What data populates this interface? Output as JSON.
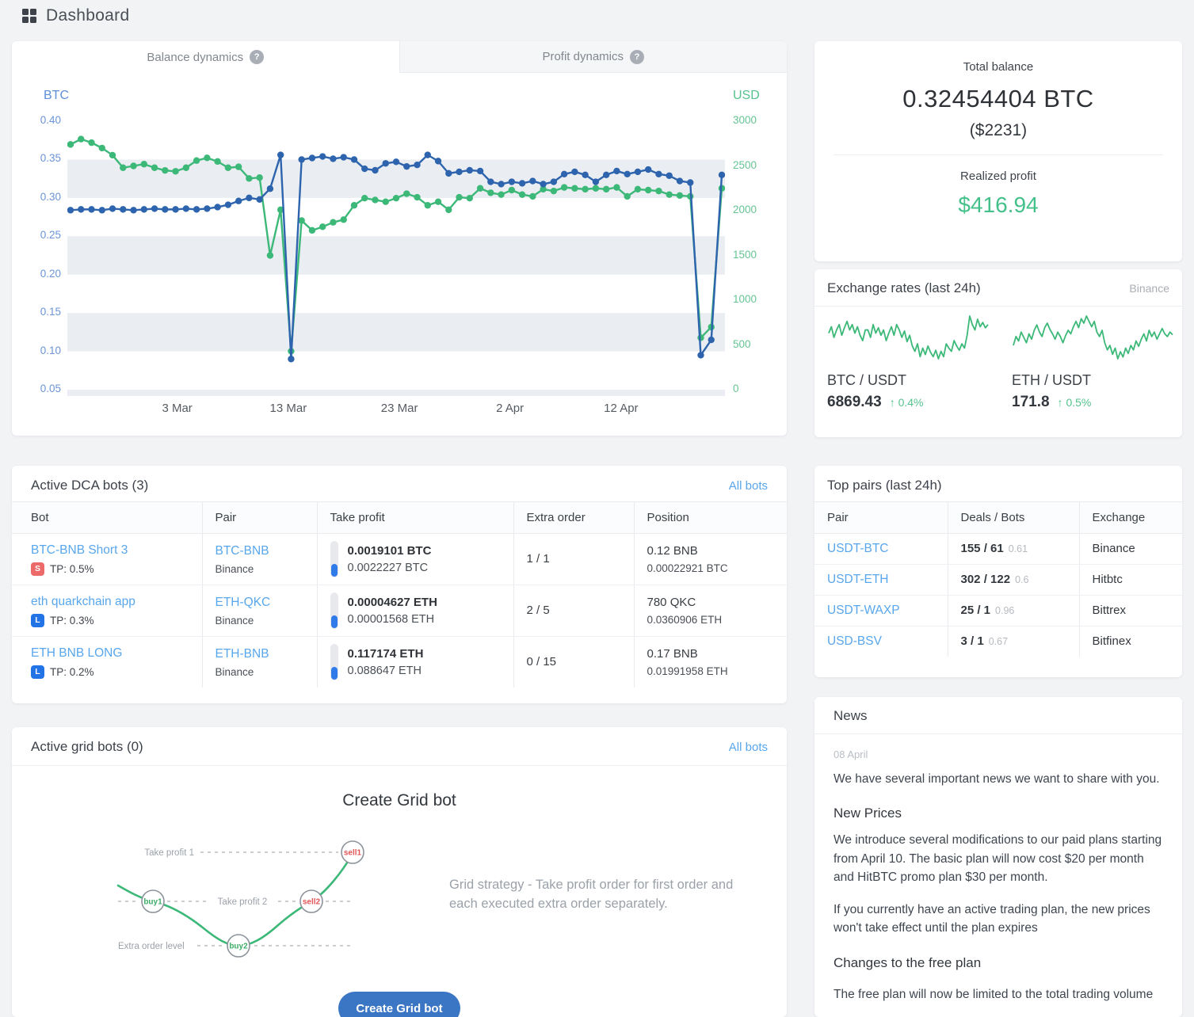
{
  "header": {
    "title": "Dashboard"
  },
  "tabs": [
    {
      "label": "Balance dynamics",
      "active": true
    },
    {
      "label": "Profit dynamics",
      "active": false
    }
  ],
  "chart_data": [
    {
      "id": "balance-dynamics",
      "type": "line",
      "title": "Balance dynamics",
      "grid": "horizontal-bands",
      "legend_position": "none",
      "left_axis": {
        "label": "BTC",
        "min": 0.05,
        "max": 0.4,
        "ticks": [
          "0.40",
          "0.35",
          "0.30",
          "0.25",
          "0.20",
          "0.15",
          "0.10",
          "0.05"
        ]
      },
      "right_axis": {
        "label": "USD",
        "min": 0,
        "max": 3000,
        "ticks": [
          3000,
          2500,
          2000,
          1500,
          1000,
          500,
          0
        ]
      },
      "x_labels": [
        {
          "label": "3 Mar",
          "pos": 0.167
        },
        {
          "label": "13 Mar",
          "pos": 0.336
        },
        {
          "label": "23 Mar",
          "pos": 0.505
        },
        {
          "label": "2 Apr",
          "pos": 0.673
        },
        {
          "label": "12 Apr",
          "pos": 0.842
        }
      ],
      "bands": [
        [
          0.35,
          0.3
        ],
        [
          0.25,
          0.2
        ],
        [
          0.15,
          0.1
        ],
        [
          0.05,
          0.028
        ]
      ],
      "band_color": "#eaedf1",
      "series": [
        {
          "name": "Balance USD",
          "axis": "right",
          "color": "#3cb878",
          "values": [
            2740,
            2800,
            2760,
            2700,
            2620,
            2480,
            2500,
            2520,
            2480,
            2450,
            2440,
            2480,
            2560,
            2590,
            2550,
            2480,
            2490,
            2360,
            2370,
            1500,
            2010,
            430,
            1890,
            1780,
            1820,
            1870,
            1900,
            2060,
            2140,
            2120,
            2100,
            2140,
            2190,
            2150,
            2060,
            2100,
            2010,
            2150,
            2140,
            2250,
            2200,
            2180,
            2230,
            2180,
            2160,
            2240,
            2220,
            2260,
            2250,
            2240,
            2250,
            2240,
            2260,
            2160,
            2240,
            2230,
            2220,
            2180,
            2170,
            2160,
            580,
            700,
            2250
          ]
        },
        {
          "name": "Balance BTC",
          "axis": "left",
          "color": "#2d64ad",
          "values": [
            0.284,
            0.285,
            0.285,
            0.284,
            0.286,
            0.285,
            0.284,
            0.285,
            0.286,
            0.285,
            0.285,
            0.286,
            0.285,
            0.286,
            0.288,
            0.291,
            0.296,
            0.3,
            0.298,
            0.312,
            0.356,
            0.09,
            0.35,
            0.352,
            0.354,
            0.351,
            0.353,
            0.35,
            0.338,
            0.336,
            0.345,
            0.347,
            0.341,
            0.343,
            0.356,
            0.348,
            0.332,
            0.334,
            0.336,
            0.335,
            0.321,
            0.318,
            0.321,
            0.319,
            0.322,
            0.318,
            0.321,
            0.331,
            0.334,
            0.33,
            0.321,
            0.33,
            0.335,
            0.331,
            0.334,
            0.337,
            0.331,
            0.329,
            0.322,
            0.32,
            0.095,
            0.115,
            0.33
          ]
        }
      ]
    },
    {
      "id": "btc-usdt-sparkline",
      "type": "line",
      "color": "#3cb878",
      "values": [
        52,
        58,
        48,
        55,
        60,
        50,
        57,
        63,
        55,
        60,
        52,
        58,
        50,
        45,
        55,
        55,
        48,
        60,
        52,
        57,
        50,
        55,
        45,
        52,
        58,
        50,
        60,
        55,
        48,
        54,
        44,
        50,
        40,
        35,
        42,
        30,
        38,
        32,
        40,
        34,
        30,
        36,
        28,
        35,
        30,
        42,
        38,
        35,
        45,
        40,
        36,
        42,
        38,
        50,
        68,
        60,
        55,
        65,
        58,
        62,
        57,
        60
      ]
    },
    {
      "id": "eth-usdt-sparkline",
      "type": "line",
      "color": "#3cb878",
      "values": [
        45,
        55,
        50,
        60,
        54,
        48,
        58,
        52,
        62,
        68,
        60,
        55,
        65,
        70,
        63,
        58,
        52,
        60,
        55,
        48,
        56,
        62,
        58,
        66,
        72,
        65,
        75,
        70,
        78,
        72,
        66,
        72,
        60,
        55,
        62,
        48,
        40,
        45,
        35,
        42,
        30,
        38,
        32,
        42,
        36,
        45,
        40,
        50,
        44,
        52,
        58,
        50,
        62,
        55,
        60,
        52,
        58,
        64,
        58,
        55,
        60,
        57
      ]
    }
  ],
  "balance": {
    "title": "Total balance",
    "btc": "0.32454404 BTC",
    "usd": "($2231)",
    "profit_label": "Realized profit",
    "profit": "$416.94"
  },
  "rates": {
    "title": "Exchange rates (last 24h)",
    "exchange": "Binance",
    "items": [
      {
        "pair": "BTC / USDT",
        "price": "6869.43",
        "change": "0.4%",
        "direction": "up"
      },
      {
        "pair": "ETH / USDT",
        "price": "171.8",
        "change": "0.5%",
        "direction": "up"
      }
    ]
  },
  "dca": {
    "title": "Active DCA bots (3)",
    "all_bots": "All bots",
    "columns": [
      "Bot",
      "Pair",
      "Take profit",
      "Extra order",
      "Position"
    ],
    "rows": [
      {
        "name": "BTC-BNB Short 3",
        "badge": "S",
        "badge_class": "badge badge-red",
        "tp": "TP: 0.5%",
        "pair": "BTC-BNB",
        "exchange": "Binance",
        "tp_main": "0.0019101 BTC",
        "tp_sub": "0.0022227 BTC",
        "extra": "1 / 1",
        "pos_main": "0.12 BNB",
        "pos_sub": "0.00022921 BTC"
      },
      {
        "name": "eth quarkchain app",
        "badge": "L",
        "badge_class": "badge badge-blue",
        "tp": "TP: 0.3%",
        "pair": "ETH-QKC",
        "exchange": "Binance",
        "tp_main": "0.00004627 ETH",
        "tp_sub": "0.00001568 ETH",
        "extra": "2 / 5",
        "pos_main": "780 QKC",
        "pos_sub": "0.0360906 ETH"
      },
      {
        "name": "ETH BNB LONG",
        "badge": "L",
        "badge_class": "badge badge-blue",
        "tp": "TP: 0.2%",
        "pair": "ETH-BNB",
        "exchange": "Binance",
        "tp_main": "0.117174 ETH",
        "tp_sub": "0.088647 ETH",
        "extra": "0 / 15",
        "pos_main": "0.17 BNB",
        "pos_sub": "0.01991958 ETH"
      }
    ]
  },
  "pairs": {
    "title": "Top pairs (last 24h)",
    "columns": [
      "Pair",
      "Deals / Bots",
      "Exchange"
    ],
    "rows": [
      {
        "pair": "USDT-BTC",
        "deals": "155 / 61",
        "ratio": "0.61",
        "exchange": "Binance"
      },
      {
        "pair": "USDT-ETH",
        "deals": "302 / 122",
        "ratio": "0.6",
        "exchange": "Hitbtc"
      },
      {
        "pair": "USDT-WAXP",
        "deals": "25 / 1",
        "ratio": "0.96",
        "exchange": "Bittrex"
      },
      {
        "pair": "USD-BSV",
        "deals": "3 / 1",
        "ratio": "0.67",
        "exchange": "Bitfinex"
      }
    ]
  },
  "grid": {
    "title": "Active grid bots (0)",
    "all_bots": "All bots",
    "heading": "Create Grid bot",
    "description": "Grid strategy - Take profit order for first order and each executed extra order separately.",
    "button": "Create Grid bot",
    "diagram": {
      "take_profit_1": "Take profit 1",
      "take_profit_2": "Take profit 2",
      "extra_order_level": "Extra order level",
      "buy1": "buy1",
      "buy2": "buy2",
      "sell1": "sell1",
      "sell2": "sell2"
    }
  },
  "news": {
    "title": "News",
    "date": "08 April",
    "intro": "We have several important news we want to share with you.",
    "sections": [
      {
        "heading": "New Prices",
        "p1": "We introduce several modifications to our paid plans starting from April 10. The basic plan will now cost $20 per month and HitBTC promo plan $30 per month.",
        "p2": "If you currently have an active trading plan, the new prices won't take effect until the plan expires"
      },
      {
        "heading": "Changes to the free plan",
        "p1": "The free plan will now be limited to the total trading volume",
        "p2": ""
      }
    ]
  },
  "colors": {
    "line_btc": "#2d64ad",
    "line_usd": "#3cb878",
    "link_blue": "#58a6ec",
    "profit_green": "#45c08a",
    "badge_red": "#ed6a6a",
    "badge_blue": "#2273e6",
    "button_blue": "#3b76c4"
  }
}
